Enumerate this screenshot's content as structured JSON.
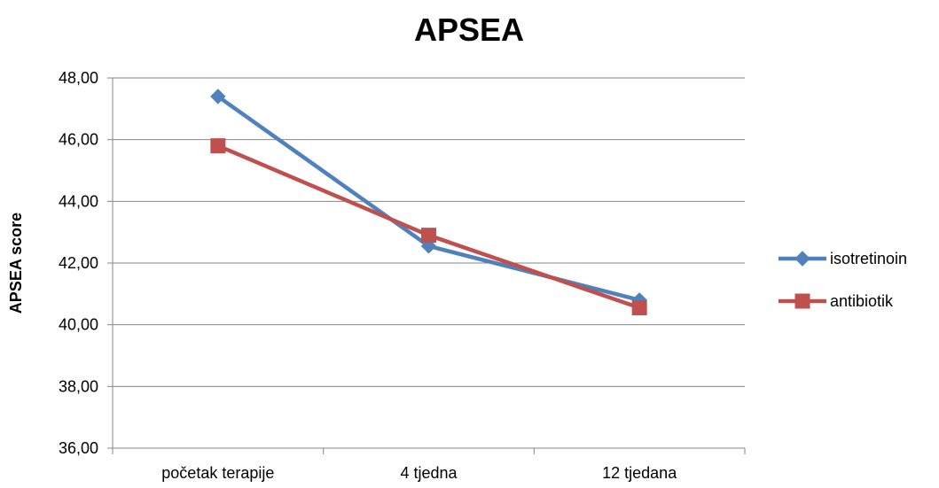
{
  "chart_data": {
    "type": "line",
    "title": "APSEA",
    "xlabel": "",
    "ylabel": "APSEA score",
    "categories": [
      "početak terapije",
      "4 tjedna",
      "12 tjedana"
    ],
    "y_tick_labels": [
      "36,00",
      "38,00",
      "40,00",
      "42,00",
      "44,00",
      "46,00",
      "48,00"
    ],
    "y_ticks": [
      36,
      38,
      40,
      42,
      44,
      46,
      48
    ],
    "ylim": [
      36,
      48
    ],
    "grid": true,
    "legend_position": "right",
    "series": [
      {
        "name": "isotretinoin",
        "values": [
          47.4,
          42.55,
          40.8
        ],
        "color": "#4F81BD",
        "marker": "diamond"
      },
      {
        "name": "antibiotik",
        "values": [
          45.8,
          42.9,
          40.55
        ],
        "color": "#C0504D",
        "marker": "square"
      }
    ]
  }
}
